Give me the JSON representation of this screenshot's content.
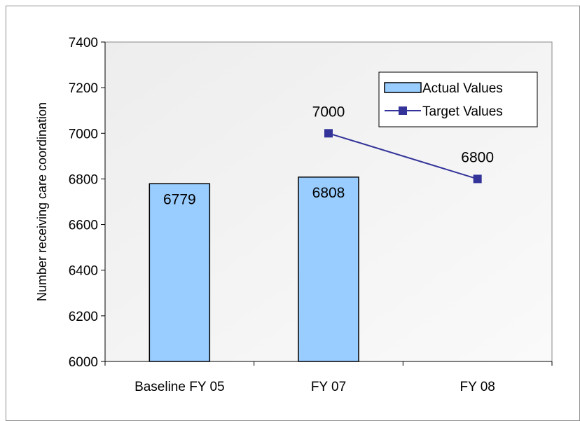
{
  "chart_data": {
    "type": "bar",
    "categories": [
      "Baseline FY 05",
      "FY 07",
      "FY 08"
    ],
    "series": [
      {
        "name": "Actual Values",
        "kind": "bar",
        "values": [
          6779,
          6808,
          null
        ],
        "labels": [
          "6779",
          "6808",
          ""
        ],
        "color": "#99ccff"
      },
      {
        "name": "Target Values",
        "kind": "line",
        "values": [
          null,
          7000,
          6800
        ],
        "labels": [
          "",
          "7000",
          "6800"
        ],
        "color": "#333399"
      }
    ],
    "title": "",
    "xlabel": "",
    "ylabel": "Number receiving care coordination",
    "ylim": [
      6000,
      7400
    ],
    "yticks": [
      6000,
      6200,
      6400,
      6600,
      6800,
      7000,
      7200,
      7400
    ],
    "ytick_labels": [
      "6000",
      "6200",
      "6400",
      "6600",
      "6800",
      "7000",
      "7200",
      "7400"
    ],
    "grid": false,
    "legend_position": "top-right",
    "plot_background": "#f0f0f0"
  }
}
